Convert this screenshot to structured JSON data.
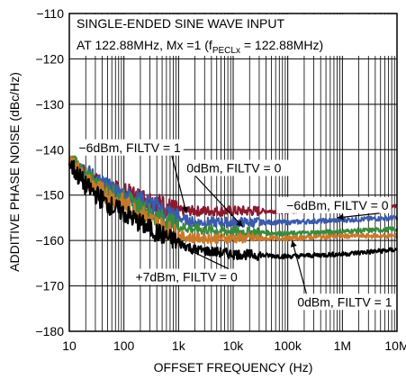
{
  "chart_data": {
    "type": "line",
    "title_lines": [
      "SINGLE-ENDED SINE WAVE INPUT",
      "AT 122.88MHz, Mx =1 (f",
      "PECLx",
      " = 122.88MHz)"
    ],
    "xlabel": "OFFSET FREQUENCY (Hz)",
    "ylabel": "ADDITIVE PHASE NOISE (dBc/Hz)",
    "x_scale": "log",
    "xlim": [
      10,
      10000000
    ],
    "ylim": [
      -180,
      -110
    ],
    "grid": true,
    "x_ticks": [
      {
        "value": 10,
        "label": "10"
      },
      {
        "value": 100,
        "label": "100"
      },
      {
        "value": 1000,
        "label": "1k"
      },
      {
        "value": 10000,
        "label": "10k"
      },
      {
        "value": 100000,
        "label": "100k"
      },
      {
        "value": 1000000,
        "label": "1M"
      },
      {
        "value": 10000000,
        "label": "10M"
      }
    ],
    "y_ticks": [
      {
        "value": -110,
        "label": "−110"
      },
      {
        "value": -120,
        "label": "−120"
      },
      {
        "value": -130,
        "label": "−130"
      },
      {
        "value": -140,
        "label": "−140"
      },
      {
        "value": -150,
        "label": "−150"
      },
      {
        "value": -160,
        "label": "−160"
      },
      {
        "value": -170,
        "label": "−170"
      },
      {
        "value": -180,
        "label": "−180"
      }
    ],
    "series": [
      {
        "color": "#8b1a2e",
        "x": [
          10,
          20,
          50,
          100,
          300,
          1000,
          2000,
          10000,
          100000,
          1000000,
          10000000
        ],
        "y": [
          -142,
          -146,
          -148.5,
          -149.5,
          -151,
          -153.5,
          -153.5,
          -153.5,
          -153.5,
          -153,
          -152.5
        ]
      },
      {
        "color": "#3b5bab",
        "x": [
          10,
          20,
          50,
          100,
          300,
          1000,
          2000,
          10000,
          100000,
          1000000,
          10000000
        ],
        "y": [
          -141,
          -145,
          -148.5,
          -150,
          -152,
          -155,
          -156,
          -156,
          -156,
          -155.5,
          -155
        ]
      },
      {
        "color": "#3a8a3e",
        "x": [
          10,
          20,
          50,
          100,
          300,
          1000,
          2000,
          10000,
          100000,
          1000000,
          10000000
        ],
        "y": [
          -141,
          -146,
          -149.5,
          -151,
          -154,
          -157,
          -157.5,
          -158,
          -158.5,
          -158,
          -157.5
        ]
      },
      {
        "color": "#c87a2c",
        "x": [
          10,
          20,
          50,
          100,
          300,
          1000,
          2000,
          10000,
          100000,
          1000000,
          10000000
        ],
        "y": [
          -142,
          -147,
          -150,
          -152,
          -155.5,
          -159,
          -159.5,
          -159.5,
          -159.5,
          -159,
          -159
        ]
      },
      {
        "color": "#000000",
        "x": [
          10,
          20,
          50,
          100,
          300,
          1000,
          2000,
          10000,
          100000,
          1000000,
          10000000
        ],
        "y": [
          -143,
          -148,
          -152,
          -154,
          -157.5,
          -160.5,
          -162,
          -163,
          -163.5,
          -163,
          -162
        ]
      }
    ],
    "annotations": [
      {
        "text": "−6dBm, FILTV = 1",
        "x": 1100,
        "y": -140.5,
        "anchor": "end",
        "arrow_to": [
          1400,
          -154
        ]
      },
      {
        "text": "0dBm, FILTV = 0",
        "x": 1400,
        "y": -145,
        "anchor": "start",
        "arrow_to": [
          15000,
          -157
        ]
      },
      {
        "text": "−6dBm, FILTV = 0",
        "x": 7000000,
        "y": -153.2,
        "anchor": "end",
        "arrow_to": [
          800000,
          -155
        ]
      },
      {
        "text": "+7dBm, FILTV = 0",
        "x": 12000,
        "y": -169,
        "anchor": "end",
        "arrow_to": [
          1500,
          -162
        ]
      },
      {
        "text": "0dBm, FILTV = 1",
        "x": 150000,
        "y": -174.5,
        "anchor": "start",
        "arrow_to": [
          120000,
          -160
        ]
      }
    ]
  }
}
